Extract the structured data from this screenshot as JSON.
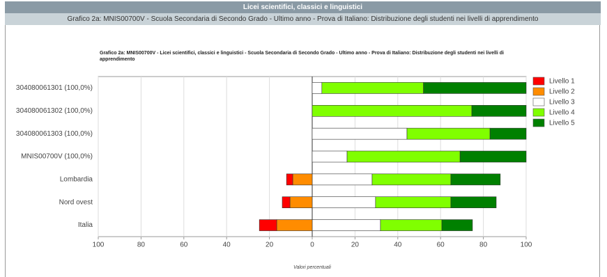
{
  "header": {
    "title": "Licei scientifici, classici e linguistici",
    "subtitle": "Grafico 2a: MNIS00700V - Scuola Secondaria di Secondo Grado - Ultimo anno - Prova di Italiano: Distribuzione degli studenti nei livelli di apprendimento"
  },
  "chart_data": {
    "type": "bar",
    "orientation": "horizontal",
    "stacked": true,
    "title": "Grafico 2a: MNIS00700V - Licei scientifici, classici e linguistici - Scuola Secondaria di Secondo Grado - Ultimo anno - Prova di Italiano: Distribuzione degli studenti nei livelli di apprendimento",
    "x_label": "Valori percentuali",
    "categories": [
      "304080061301 (100,0%)",
      "304080061302 (100,0%)",
      "304080061303 (100,0%)",
      "MNIS00700V (100,0%)",
      "Lombardia",
      "Nord ovest",
      "Italia"
    ],
    "series": [
      {
        "name": "Livello 1",
        "color": "#ff0000",
        "values": [
          0,
          0,
          0,
          0,
          -2.9,
          -3.6,
          -8.1
        ]
      },
      {
        "name": "Livello 2",
        "color": "#ff8c00",
        "values": [
          0,
          0,
          0,
          0,
          -9.1,
          -10.4,
          -16.6
        ]
      },
      {
        "name": "Livello 3",
        "color": "#ffffff",
        "values": [
          4.5,
          0,
          44.3,
          16.3,
          28,
          29.6,
          31.9
        ]
      },
      {
        "name": "Livello 4",
        "color": "#80ff00",
        "values": [
          47.5,
          74.6,
          38.8,
          52.8,
          36.8,
          35.2,
          28.7
        ]
      },
      {
        "name": "Livello 5",
        "color": "#008000",
        "values": [
          48,
          25.4,
          16.9,
          30.9,
          23.1,
          21.2,
          14.3
        ]
      }
    ],
    "xlim": [
      -100,
      100
    ],
    "xticks": [
      {
        "value": -100,
        "label": "100"
      },
      {
        "value": -80,
        "label": "80"
      },
      {
        "value": -60,
        "label": "60"
      },
      {
        "value": -40,
        "label": "40"
      },
      {
        "value": -20,
        "label": "20"
      },
      0,
      20,
      40,
      60,
      80,
      100
    ],
    "grid": true,
    "legend": "right"
  }
}
